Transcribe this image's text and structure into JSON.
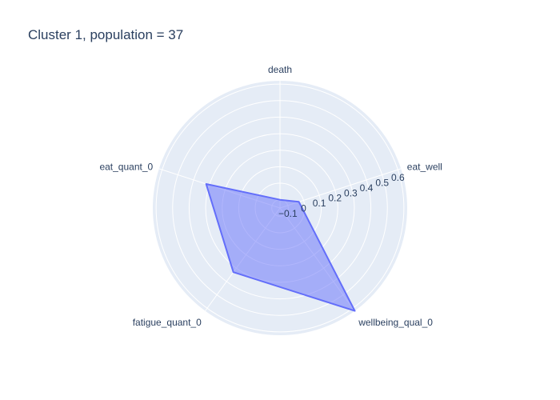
{
  "chart_data": {
    "type": "radar",
    "title": "Cluster 1, population = 37",
    "categories": [
      "death",
      "eat_well",
      "wellbeing_qual_0",
      "fatigue_quant_0",
      "eat_quant_0"
    ],
    "values": [
      -0.1,
      -0.03,
      0.62,
      0.33,
      0.32
    ],
    "radial_range": [
      -0.15,
      0.62
    ],
    "radial_ticks": [
      -0.1,
      0,
      0.1,
      0.2,
      0.3,
      0.4,
      0.5,
      0.6
    ],
    "radial_tick_labels": [
      "−0.1",
      "0",
      "0.1",
      "0.2",
      "0.3",
      "0.4",
      "0.5",
      "0.6"
    ],
    "fill_color": "#636efa",
    "fill_opacity": 0.5,
    "background_color": "#e5ecf6",
    "grid": true,
    "legend": "none"
  }
}
